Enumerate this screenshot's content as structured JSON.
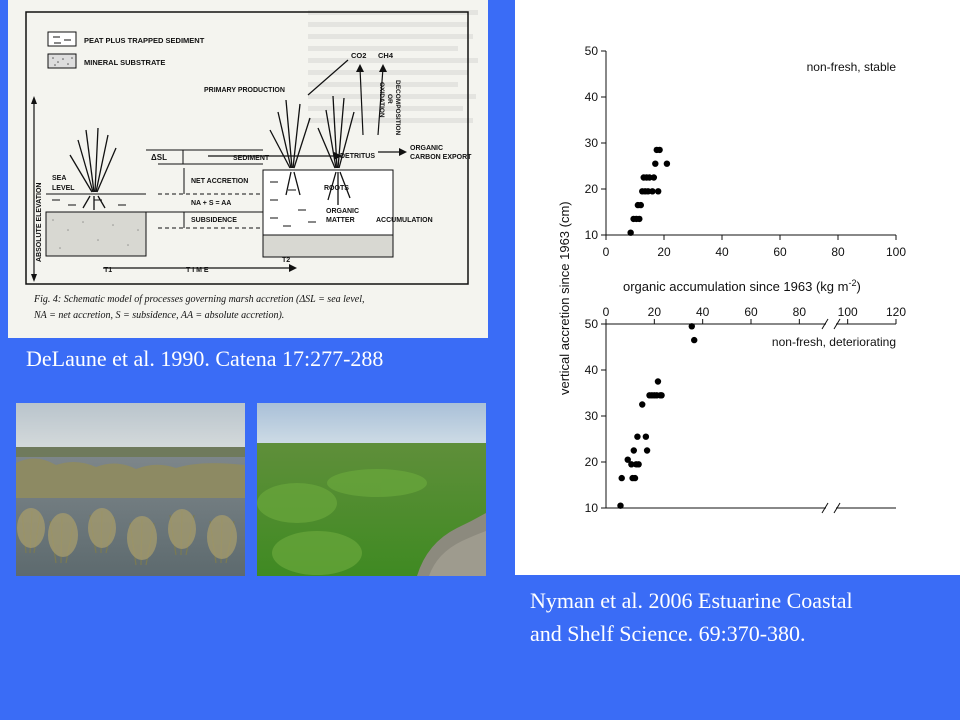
{
  "left_figure": {
    "legend_peat": "PEAT PLUS TRAPPED SEDIMENT",
    "legend_mineral": "MINERAL SUBSTRATE",
    "label_primary_production": "PRIMARY PRODUCTION",
    "label_co2": "CO2",
    "label_ch4": "CH4",
    "label_decomposition": "DECOMPOSITION",
    "label_or": "OR",
    "label_oxidation": "OXIDATION",
    "label_organic_export": "ORGANIC",
    "label_carbon_export": "CARBON EXPORT",
    "label_sediment": "SEDIMENT",
    "label_detritus": "DETRITUS",
    "label_delta_sl": "ΔSL",
    "label_net_accretion": "NET ACCRETION",
    "label_sea": "SEA",
    "label_level": "LEVEL",
    "label_roots": "ROOTS",
    "label_equation": "NA + S = AA",
    "label_organic_matter": "ORGANIC",
    "label_matter": "MATTER",
    "label_accumulation": "ACCUMULATION",
    "label_subsidence": "SUBSIDENCE",
    "label_absolute_elevation": "ABSOLUTE ELEVATION",
    "label_t1": "T1",
    "label_time": "T I M E",
    "label_t2": "T2",
    "fig_caption_line1": "Fig. 4: Schematic model of processes governing marsh accretion (ΔSL = sea level,",
    "fig_caption_line2": "NA = net accretion, S = subsidence, AA = absolute accretion)."
  },
  "captions": {
    "left": "DeLaune et al. 1990.  Catena 17:277-288",
    "right_line1": "Nyman et al.  2006 Estuarine Coastal",
    "right_line2": "and Shelf Science.  69:370-380."
  },
  "chart_data": [
    {
      "type": "scatter",
      "title": "non-fresh, stable",
      "xlabel": "organic accumulation since 1963 (kg m-2)",
      "ylabel": "vertical accretion since 1963 (cm)",
      "xlim": [
        0,
        100
      ],
      "ylim": [
        10,
        50
      ],
      "xticks": [
        0,
        20,
        40,
        60,
        80,
        100
      ],
      "yticks": [
        10,
        20,
        30,
        40,
        50
      ],
      "x": [
        8.5,
        9.5,
        10.5,
        11,
        11.5,
        12,
        12.5,
        13,
        13.5,
        14,
        14.5,
        15,
        16,
        16.5,
        17,
        17.5,
        18,
        18.5,
        21
      ],
      "y": [
        10.5,
        13.5,
        13.5,
        16.5,
        13.5,
        16.5,
        19.5,
        22.5,
        19.5,
        22.5,
        19.5,
        22.5,
        19.5,
        22.5,
        25.5,
        28.5,
        19.5,
        28.5,
        25.5
      ]
    },
    {
      "type": "scatter",
      "title": "non-fresh, deteriorating",
      "xlabel": "",
      "ylabel": "vertical accretion since 1963 (cm)",
      "xlim": [
        0,
        120
      ],
      "ylim": [
        10,
        50
      ],
      "xticks": [
        0,
        20,
        40,
        60,
        80,
        100,
        120
      ],
      "yticks": [
        10,
        20,
        30,
        40,
        50
      ],
      "axis_break": true,
      "x": [
        6,
        6.5,
        9,
        10.5,
        11,
        11.5,
        12,
        12.5,
        13,
        13.5,
        15,
        16.5,
        17,
        18,
        19,
        20,
        21,
        21.5,
        22.5,
        23,
        35.5,
        36.5
      ],
      "y": [
        10.5,
        16.5,
        20.5,
        19.5,
        16.5,
        22.5,
        16.5,
        19.5,
        25.5,
        19.5,
        32.5,
        25.5,
        22.5,
        34.5,
        34.5,
        34.5,
        34.5,
        37.5,
        34.5,
        34.5,
        49.5,
        46.5
      ]
    }
  ]
}
